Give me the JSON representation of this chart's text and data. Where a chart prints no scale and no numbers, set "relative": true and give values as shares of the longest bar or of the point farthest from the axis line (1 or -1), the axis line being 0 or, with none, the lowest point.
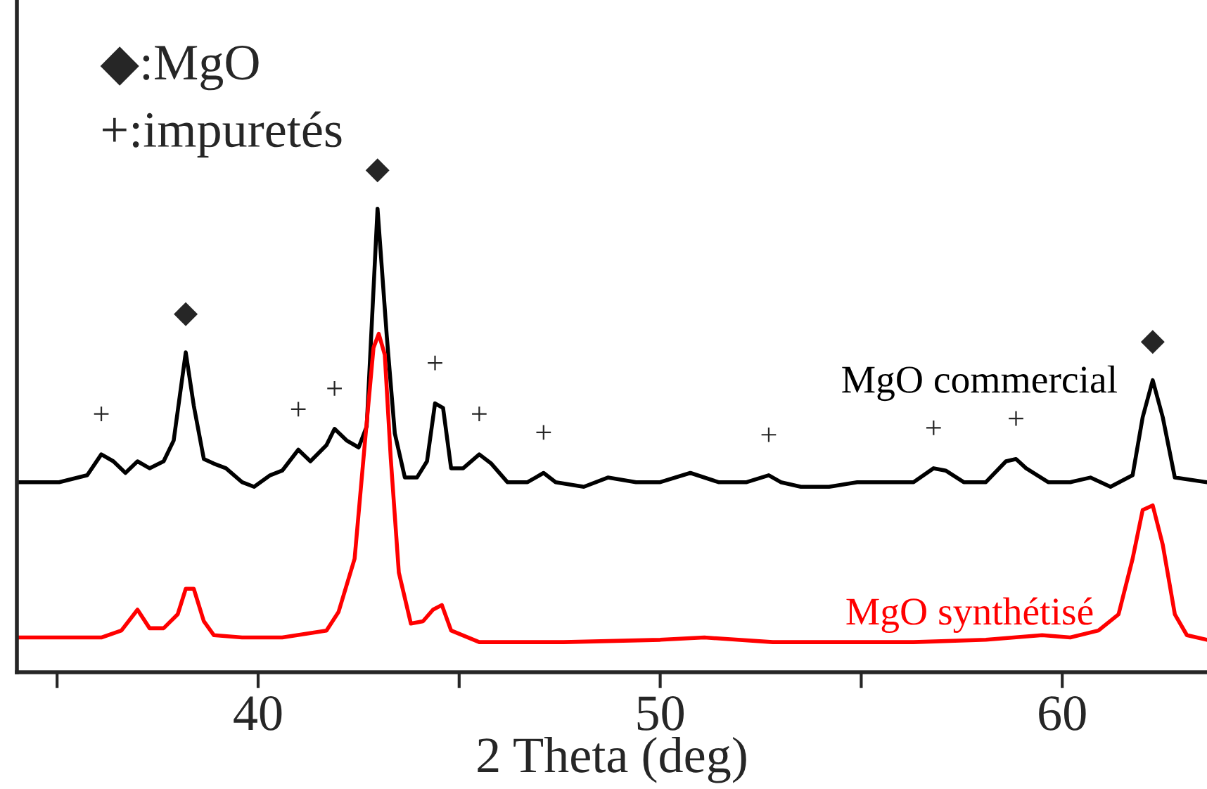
{
  "chart_data": {
    "type": "line",
    "relative": true,
    "xlabel": "2 Theta (deg)",
    "xlim": [
      34.0,
      63.6
    ],
    "xticks": [
      {
        "value": 35,
        "label": null
      },
      40,
      {
        "value": 45,
        "label": null
      },
      50,
      {
        "value": 55,
        "label": null
      },
      60
    ],
    "grid": false,
    "legend": false,
    "tick_labels": "x",
    "marker": "none",
    "line_style": "solid",
    "series": [
      {
        "name": "MgO commercial",
        "color": "#000000",
        "x": [
          34.0,
          35.05,
          35.75,
          36.1,
          36.4,
          36.7,
          37.0,
          37.3,
          37.65,
          37.9,
          38.2,
          38.4,
          38.65,
          38.9,
          39.2,
          39.6,
          39.9,
          40.3,
          40.6,
          41.0,
          41.3,
          41.7,
          41.9,
          42.2,
          42.5,
          42.7,
          42.97,
          43.2,
          43.4,
          43.65,
          43.95,
          44.2,
          44.4,
          44.6,
          44.8,
          45.1,
          45.5,
          45.8,
          46.2,
          46.7,
          47.1,
          47.4,
          48.1,
          48.7,
          49.4,
          50.0,
          50.75,
          51.45,
          52.15,
          52.7,
          53.0,
          53.5,
          54.2,
          54.9,
          55.6,
          56.3,
          56.8,
          57.1,
          57.55,
          58.1,
          58.6,
          58.85,
          59.1,
          59.65,
          60.2,
          60.7,
          61.2,
          61.75,
          62.0,
          62.25,
          62.5,
          62.8,
          63.6
        ],
        "values": [
          0.41,
          0.41,
          0.425,
          0.47,
          0.455,
          0.43,
          0.455,
          0.44,
          0.455,
          0.5,
          0.69,
          0.575,
          0.46,
          0.45,
          0.44,
          0.41,
          0.4,
          0.425,
          0.435,
          0.48,
          0.455,
          0.49,
          0.525,
          0.5,
          0.485,
          0.53,
          1.0,
          0.725,
          0.515,
          0.42,
          0.42,
          0.455,
          0.58,
          0.57,
          0.44,
          0.44,
          0.47,
          0.45,
          0.41,
          0.41,
          0.43,
          0.41,
          0.4,
          0.42,
          0.41,
          0.41,
          0.43,
          0.41,
          0.41,
          0.425,
          0.41,
          0.4,
          0.4,
          0.41,
          0.41,
          0.41,
          0.44,
          0.435,
          0.41,
          0.41,
          0.455,
          0.46,
          0.44,
          0.41,
          0.41,
          0.42,
          0.4,
          0.425,
          0.55,
          0.63,
          0.55,
          0.42,
          0.41
        ]
      },
      {
        "name": "MgO synthétisé",
        "color": "#ff0000",
        "x": [
          34.0,
          35.05,
          36.1,
          36.6,
          37.0,
          37.3,
          37.65,
          38.0,
          38.2,
          38.4,
          38.65,
          38.9,
          39.6,
          40.6,
          41.7,
          42.0,
          42.4,
          42.65,
          42.87,
          43.0,
          43.15,
          43.3,
          43.5,
          43.8,
          44.1,
          44.35,
          44.57,
          44.8,
          45.5,
          47.6,
          50.0,
          51.1,
          52.8,
          54.6,
          56.3,
          58.1,
          59.5,
          60.2,
          60.9,
          61.4,
          61.75,
          62.0,
          62.25,
          62.5,
          62.8,
          63.1,
          63.6
        ],
        "values": [
          0.075,
          0.075,
          0.075,
          0.09,
          0.135,
          0.095,
          0.095,
          0.125,
          0.18,
          0.18,
          0.11,
          0.08,
          0.075,
          0.075,
          0.09,
          0.13,
          0.245,
          0.49,
          0.7,
          0.73,
          0.685,
          0.46,
          0.215,
          0.105,
          0.11,
          0.135,
          0.145,
          0.09,
          0.065,
          0.065,
          0.07,
          0.075,
          0.065,
          0.065,
          0.065,
          0.07,
          0.08,
          0.075,
          0.09,
          0.125,
          0.245,
          0.35,
          0.36,
          0.275,
          0.125,
          0.08,
          0.07
        ]
      }
    ],
    "annotations": [
      "◆:MgO",
      "+:impuretés",
      {
        "text": "◆",
        "x": 38.2,
        "y": 0.69
      },
      {
        "text": "◆",
        "x": 42.97,
        "y": 1.0
      },
      {
        "text": "◆",
        "x": 62.25,
        "y": 0.63
      },
      {
        "text": "+",
        "x": 36.1,
        "y": 0.47
      },
      {
        "text": "+",
        "x": 41.0,
        "y": 0.48
      },
      {
        "text": "+",
        "x": 41.9,
        "y": 0.525
      },
      {
        "text": "+",
        "x": 44.4,
        "y": 0.58
      },
      {
        "text": "+",
        "x": 45.5,
        "y": 0.47
      },
      {
        "text": "+",
        "x": 47.1,
        "y": 0.43
      },
      {
        "text": "+",
        "x": 52.7,
        "y": 0.425
      },
      {
        "text": "+",
        "x": 56.8,
        "y": 0.44
      },
      {
        "text": "+",
        "x": 58.85,
        "y": 0.46
      }
    ]
  }
}
